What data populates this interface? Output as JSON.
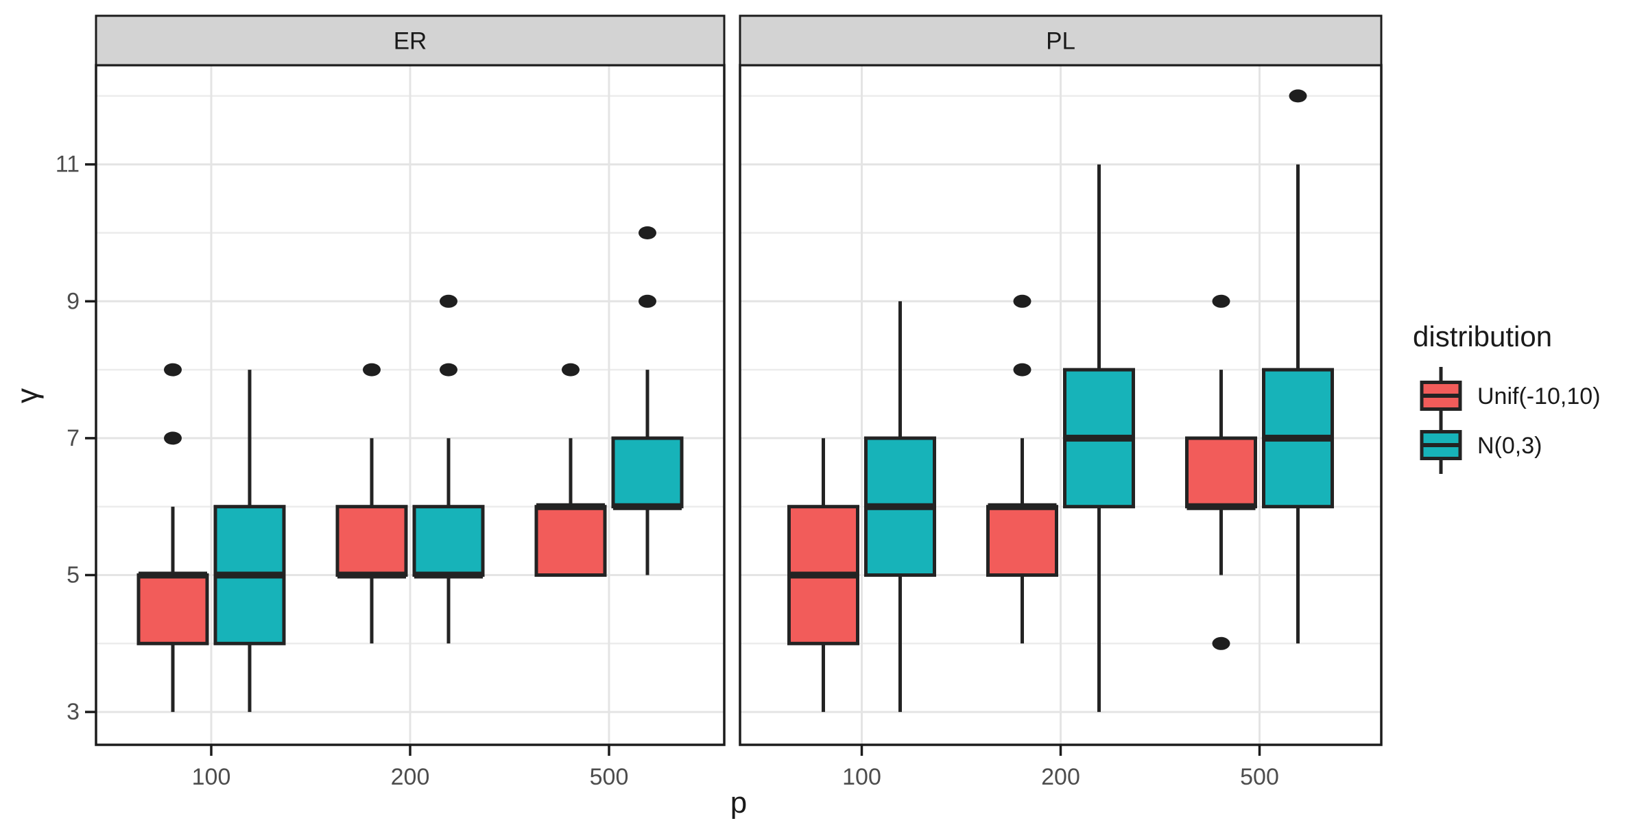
{
  "chart_data": {
    "type": "boxplot",
    "title": "",
    "xlabel": "p",
    "ylabel": "γ",
    "x_categories": [
      "100",
      "200",
      "500"
    ],
    "y_axis": {
      "range": [
        2.52,
        12.45
      ],
      "ticks": [
        {
          "value": 3,
          "label": "3"
        },
        {
          "value": 5,
          "label": "5"
        },
        {
          "value": 7,
          "label": "7"
        },
        {
          "value": 9,
          "label": "9"
        },
        {
          "value": 11,
          "label": "11"
        }
      ],
      "minor": [
        4,
        6,
        8,
        10,
        12
      ],
      "grid": true
    },
    "legend": {
      "title": "distribution",
      "position": "right",
      "entries": [
        {
          "label": "Unif(-10,10)",
          "color": "#F25C5A"
        },
        {
          "label": "N(0,3)",
          "color": "#17B3B9"
        }
      ]
    },
    "facets": [
      {
        "label": "ER",
        "groups": [
          {
            "x": "100",
            "boxes": [
              {
                "series": "Unif(-10,10)",
                "low": 3,
                "q1": 4,
                "median": 5,
                "q3": 5,
                "high": 6,
                "outliers": [
                  7,
                  8
                ]
              },
              {
                "series": "N(0,3)",
                "low": 3,
                "q1": 4,
                "median": 5,
                "q3": 6,
                "high": 8,
                "outliers": []
              }
            ]
          },
          {
            "x": "200",
            "boxes": [
              {
                "series": "Unif(-10,10)",
                "low": 4,
                "q1": 5,
                "median": 5,
                "q3": 6,
                "high": 7,
                "outliers": [
                  8
                ]
              },
              {
                "series": "N(0,3)",
                "low": 4,
                "q1": 5,
                "median": 5,
                "q3": 6,
                "high": 7,
                "outliers": [
                  8,
                  9
                ]
              }
            ]
          },
          {
            "x": "500",
            "boxes": [
              {
                "series": "Unif(-10,10)",
                "low": 5,
                "q1": 5,
                "median": 6,
                "q3": 6,
                "high": 7,
                "outliers": [
                  8
                ]
              },
              {
                "series": "N(0,3)",
                "low": 5,
                "q1": 6,
                "median": 6,
                "q3": 7,
                "high": 8,
                "outliers": [
                  9,
                  10
                ]
              }
            ]
          }
        ]
      },
      {
        "label": "PL",
        "groups": [
          {
            "x": "100",
            "boxes": [
              {
                "series": "Unif(-10,10)",
                "low": 3,
                "q1": 4,
                "median": 5,
                "q3": 6,
                "high": 7,
                "outliers": []
              },
              {
                "series": "N(0,3)",
                "low": 3,
                "q1": 5,
                "median": 6,
                "q3": 7,
                "high": 9,
                "outliers": []
              }
            ]
          },
          {
            "x": "200",
            "boxes": [
              {
                "series": "Unif(-10,10)",
                "low": 4,
                "q1": 5,
                "median": 6,
                "q3": 6,
                "high": 7,
                "outliers": [
                  8,
                  9
                ]
              },
              {
                "series": "N(0,3)",
                "low": 3,
                "q1": 6,
                "median": 7,
                "q3": 8,
                "high": 11,
                "outliers": []
              }
            ]
          },
          {
            "x": "500",
            "boxes": [
              {
                "series": "Unif(-10,10)",
                "low": 5,
                "q1": 6,
                "median": 6,
                "q3": 7,
                "high": 8,
                "outliers": [
                  4,
                  9
                ]
              },
              {
                "series": "N(0,3)",
                "low": 4,
                "q1": 6,
                "median": 7,
                "q3": 8,
                "high": 11,
                "outliers": [
                  12
                ]
              }
            ]
          }
        ]
      }
    ],
    "colors": {
      "fill_unif": "#F25C5A",
      "fill_norm": "#17B3B9",
      "box_border": "#232323",
      "outlier": "#1f1f1f",
      "grid_major": "#E4E4E4",
      "grid_minor": "#ECECEC",
      "strip_fill": "#D3D3D3",
      "strip_border": "#1c1c1c",
      "panel_border": "#1c1c1c",
      "tick_label": "#4d4d4d",
      "title_text": "#1a1a1a",
      "background": "#FFFFFF"
    }
  }
}
